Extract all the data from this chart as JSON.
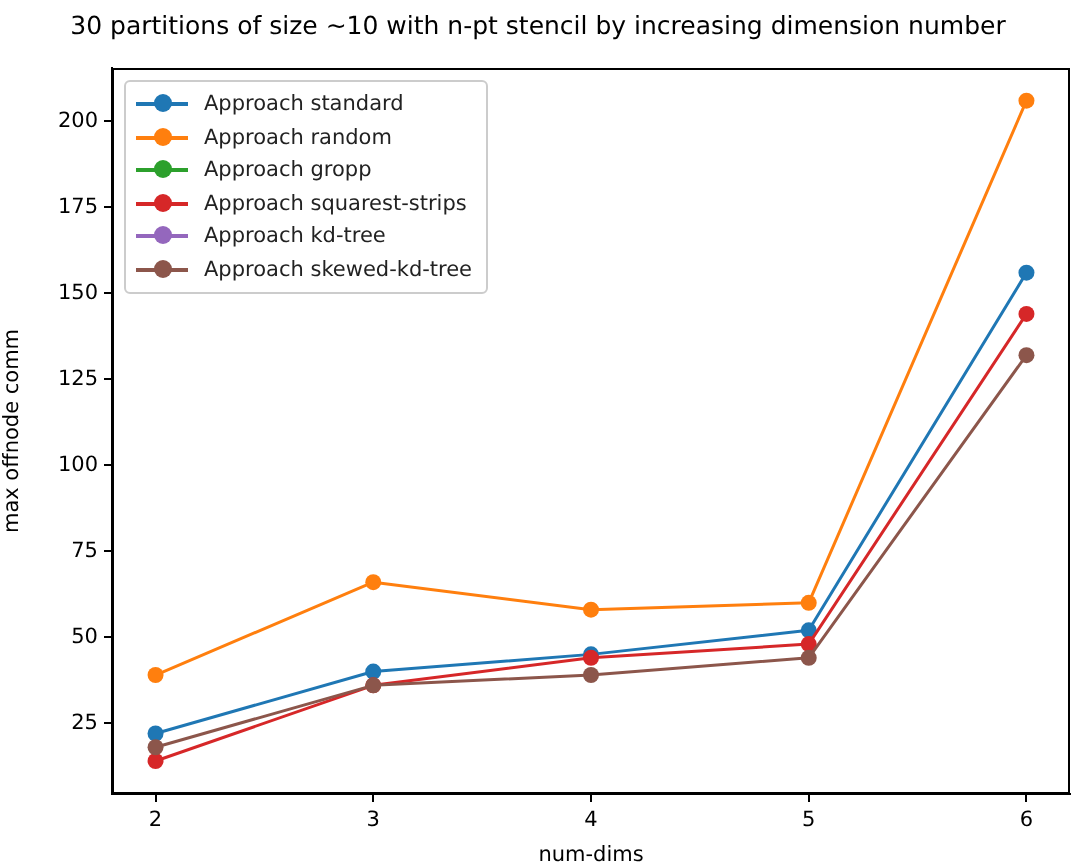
{
  "chart_data": {
    "type": "line",
    "title": "30 partitions of size ~10 with n-pt stencil by increasing dimension number",
    "xlabel": "num-dims",
    "ylabel": "max offnode comm",
    "x": [
      2,
      3,
      4,
      5,
      6
    ],
    "series": [
      {
        "name": "Approach standard",
        "color": "#1f77b4",
        "values": [
          22,
          40,
          45,
          52,
          156
        ]
      },
      {
        "name": "Approach random",
        "color": "#ff7f0e",
        "values": [
          39,
          66,
          58,
          60,
          206
        ]
      },
      {
        "name": "Approach gropp",
        "color": "#2ca02c",
        "values": [
          null,
          null,
          null,
          null,
          null
        ]
      },
      {
        "name": "Approach squarest-strips",
        "color": "#d62728",
        "values": [
          14,
          36,
          44,
          48,
          144
        ]
      },
      {
        "name": "Approach kd-tree",
        "color": "#9467bd",
        "values": [
          null,
          null,
          null,
          null,
          null
        ]
      },
      {
        "name": "Approach skewed-kd-tree",
        "color": "#8c564b",
        "values": [
          18,
          36,
          39,
          44,
          132
        ]
      }
    ],
    "xlim": [
      1.8,
      6.2
    ],
    "xticks": [
      2,
      3,
      4,
      5,
      6
    ],
    "ylim": [
      4.4,
      215.5
    ],
    "yticks": [
      25,
      50,
      75,
      100,
      125,
      150,
      175,
      200
    ],
    "grid": false,
    "legend": "top left",
    "marker": "circle",
    "line_style": "solid"
  }
}
